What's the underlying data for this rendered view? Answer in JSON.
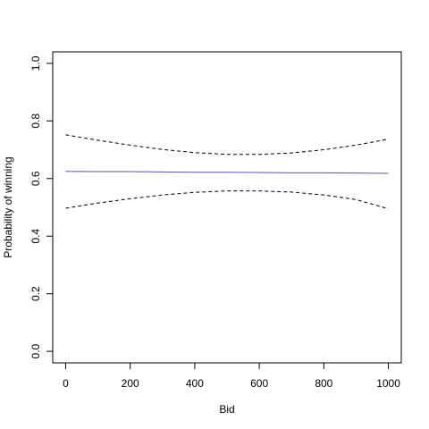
{
  "chart_data": {
    "type": "line",
    "x_label": "Bid",
    "y_label": "Probability of winning",
    "x": [
      0,
      100,
      200,
      300,
      400,
      500,
      600,
      700,
      800,
      900,
      1000
    ],
    "series": [
      {
        "color": "#5555aa",
        "linestyle": "solid",
        "values": [
          0.625,
          0.624,
          0.624,
          0.623,
          0.622,
          0.622,
          0.621,
          0.62,
          0.62,
          0.619,
          0.618
        ]
      },
      {
        "color": "#000000",
        "linestyle": "dashed",
        "values": [
          0.752,
          0.733,
          0.716,
          0.701,
          0.69,
          0.684,
          0.684,
          0.689,
          0.7,
          0.716,
          0.737
        ]
      },
      {
        "color": "#000000",
        "linestyle": "dashed",
        "values": [
          0.497,
          0.515,
          0.53,
          0.543,
          0.552,
          0.557,
          0.557,
          0.553,
          0.543,
          0.527,
          0.495
        ]
      }
    ],
    "xlim": [
      -40,
      1040
    ],
    "xticks": [
      0,
      200,
      400,
      600,
      800,
      1000
    ],
    "ylim": [
      -0.04,
      1.04
    ],
    "yticks": [
      {
        "value": 0,
        "label": "0.0"
      },
      0.2,
      0.4,
      0.6,
      0.8,
      {
        "value": 1,
        "label": "1.0"
      }
    ]
  }
}
